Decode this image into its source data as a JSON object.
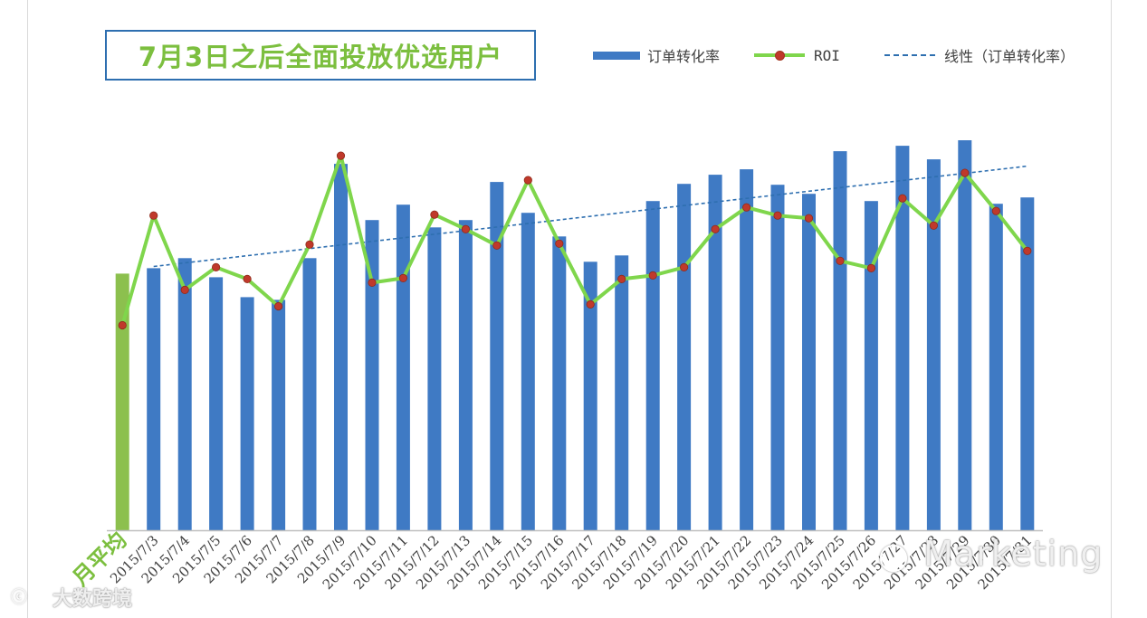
{
  "title": "7月3日之后全面投放优选用户",
  "legend": {
    "bar_label": "订单转化率",
    "line_label": "ROI",
    "trend_label": "线性（订单转化率）"
  },
  "colors": {
    "bar": "#3f7ac4",
    "avg_bar": "#8cc04e",
    "line": "#7fd64c",
    "marker": "#c0392b",
    "trend": "#2e6fb0",
    "title": "#7cbf3f"
  },
  "watermarks": {
    "right": "Marketing",
    "left": "大数跨境"
  },
  "chart_data": {
    "type": "bar",
    "categories": [
      "月平均",
      "2015/7/3",
      "2015/7/4",
      "2015/7/5",
      "2015/7/6",
      "2015/7/7",
      "2015/7/8",
      "2015/7/9",
      "2015/7/10",
      "2015/7/11",
      "2015/7/12",
      "2015/7/13",
      "2015/7/14",
      "2015/7/15",
      "2015/7/16",
      "2015/7/17",
      "2015/7/18",
      "2015/7/19",
      "2015/7/20",
      "2015/7/21",
      "2015/7/22",
      "2015/7/23",
      "2015/7/24",
      "2015/7/25",
      "2015/7/26",
      "2015/7/27",
      "2015/7/28",
      "2015/7/29",
      "2015/7/30",
      "2015/7/31"
    ],
    "series": [
      {
        "name": "订单转化率",
        "type": "bar",
        "values": [
          283,
          289,
          300,
          279,
          257,
          254,
          300,
          404,
          342,
          359,
          334,
          342,
          384,
          350,
          324,
          296,
          303,
          363,
          382,
          392,
          398,
          381,
          371,
          418,
          363,
          424,
          409,
          430,
          360,
          367
        ]
      },
      {
        "name": "ROI",
        "type": "line",
        "values": [
          226,
          347,
          265,
          290,
          277,
          247,
          315,
          413,
          273,
          278,
          348,
          332,
          314,
          386,
          316,
          249,
          277,
          281,
          290,
          332,
          356,
          347,
          344,
          297,
          289,
          366,
          336,
          394,
          352,
          308
        ]
      },
      {
        "name": "线性（订单转化率）",
        "type": "trend",
        "values": [
          287,
          290.9,
          294.9,
          298.8,
          302.8,
          306.7,
          310.7,
          314.6,
          318.6,
          322.5,
          326.5,
          330.4,
          334.4,
          338.3,
          342.3,
          346.2,
          350.2,
          354.1,
          358.1,
          362,
          366,
          369.9,
          373.9,
          377.8,
          381.8,
          385.7,
          389.7,
          393.6,
          397.6,
          401.5
        ]
      }
    ],
    "ylim": [
      0,
      450
    ],
    "grid": false,
    "legend_position": "top-right"
  }
}
